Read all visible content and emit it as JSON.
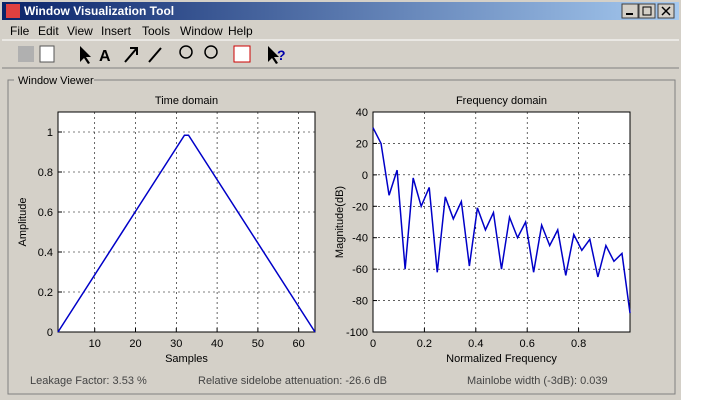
{
  "window": {
    "title": "Window Visualization Tool",
    "menus": [
      "File",
      "Edit",
      "View",
      "Insert",
      "Tools",
      "Window",
      "Help"
    ]
  },
  "panel": {
    "title": "Window Viewer"
  },
  "status": {
    "leakage": "Leakage Factor: 3.53 %",
    "sidelobe": "Relative sidelobe attenuation: -26.6 dB",
    "mainlobe": "Mainlobe width (-3dB): 0.039"
  },
  "chart_data": [
    {
      "type": "line",
      "title": "Time domain",
      "xlabel": "Samples",
      "ylabel": "Amplitude",
      "color": "#0000c8",
      "x": [
        1,
        32,
        33,
        64
      ],
      "values": [
        0,
        0.984,
        0.984,
        0
      ],
      "xlim": [
        1,
        64
      ],
      "ylim": [
        0,
        1.1
      ],
      "xticks": [
        10,
        20,
        30,
        40,
        50,
        60
      ],
      "yticks": [
        0,
        0.2,
        0.4,
        0.6,
        0.8,
        1
      ],
      "grid": true
    },
    {
      "type": "line",
      "title": "Frequency domain",
      "xlabel": "Normalized Frequency",
      "ylabel": "Magnitude(dB)",
      "color": "#0000c8",
      "x": [
        0,
        0.03125,
        0.0625,
        0.09375,
        0.125,
        0.15625,
        0.1875,
        0.21875,
        0.25,
        0.28125,
        0.3125,
        0.34375,
        0.375,
        0.40625,
        0.4375,
        0.46875,
        0.5,
        0.53125,
        0.5625,
        0.59375,
        0.625,
        0.65625,
        0.6875,
        0.71875,
        0.75,
        0.78125,
        0.8125,
        0.84375,
        0.875,
        0.90625,
        0.9375,
        0.96875,
        1
      ],
      "values": [
        30,
        20,
        -13,
        3,
        -60,
        -2,
        -20,
        -8,
        -62,
        -14,
        -28,
        -17,
        -58,
        -21,
        -35,
        -24,
        -60,
        -27,
        -40,
        -30,
        -62,
        -32,
        -45,
        -35,
        -64,
        -38,
        -48,
        -41,
        -65,
        -45,
        -55,
        -50,
        -88
      ],
      "xlim": [
        0,
        1
      ],
      "ylim": [
        -100,
        40
      ],
      "xticks": [
        0,
        0.2,
        0.4,
        0.6,
        0.8
      ],
      "yticks": [
        -100,
        -80,
        -60,
        -40,
        -20,
        0,
        20,
        40
      ],
      "grid": true
    }
  ]
}
